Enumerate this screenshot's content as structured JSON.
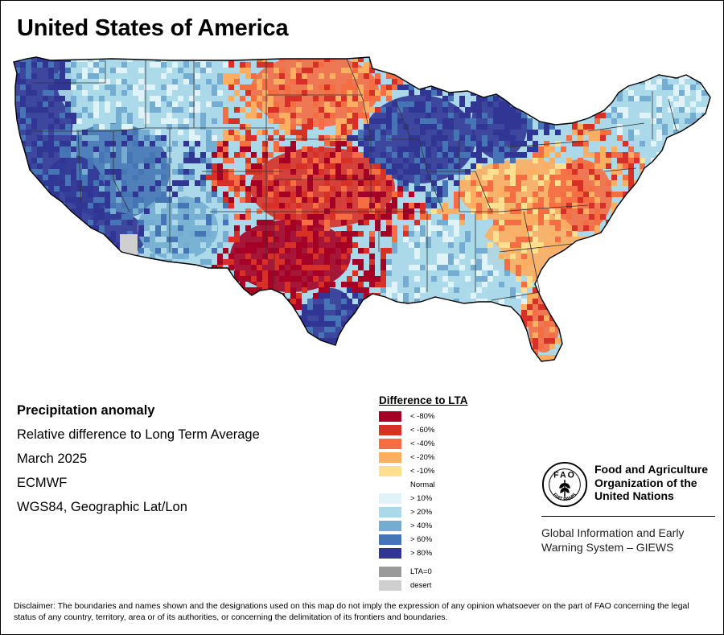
{
  "title": "United States of America",
  "info": {
    "heading": "Precipitation anomaly",
    "line1": "Relative difference to Long Term Average",
    "line2": "March 2025",
    "line3": "ECMWF",
    "line4": "WGS84, Geographic Lat/Lon"
  },
  "legend": {
    "title": "Difference to LTA",
    "classes": [
      {
        "label": "< -80%",
        "color": "#a50026"
      },
      {
        "label": "< -60%",
        "color": "#d73027"
      },
      {
        "label": "< -40%",
        "color": "#f46d43"
      },
      {
        "label": "< -20%",
        "color": "#fdae61"
      },
      {
        "label": "< -10%",
        "color": "#fee090"
      },
      {
        "label": "Normal",
        "color": "#ffffff"
      },
      {
        "label": "> 10%",
        "color": "#e0f3f8"
      },
      {
        "label": "> 20%",
        "color": "#abd9e9"
      },
      {
        "label": "> 40%",
        "color": "#74add1"
      },
      {
        "label": "> 60%",
        "color": "#4575b4"
      },
      {
        "label": "> 80%",
        "color": "#313695"
      }
    ],
    "extra": [
      {
        "label": "LTA=0",
        "color": "#9a9a9a"
      },
      {
        "label": "desert",
        "color": "#cfcfcf"
      }
    ]
  },
  "fao": {
    "name_line1": "Food and Agriculture",
    "name_line2": "Organization of the",
    "name_line3": "United Nations",
    "logo_letters": "FAO",
    "logo_motto": "FIAT PANIS",
    "giews_line1": "Global Information and Early",
    "giews_line2": "Warning System – GIEWS"
  },
  "disclaimer": "Disclaimer: The boundaries and names shown and the designations used on this map do not imply the expression of any opinion whatsoever on the part of FAO concerning the legal status of any country, territory, area or of its authorities, or concerning the delimitation of its frontiers and boundaries.",
  "map_regions": [
    {
      "name": "pacific-northwest-coast",
      "cls": 10
    },
    {
      "name": "northern-rockies",
      "cls": 7
    },
    {
      "name": "great-basin",
      "cls": 9
    },
    {
      "name": "central-california-valley",
      "cls": 10
    },
    {
      "name": "southern-california",
      "cls": 10
    },
    {
      "name": "southwest-desert",
      "cls": 8
    },
    {
      "name": "northern-plains",
      "cls": 2
    },
    {
      "name": "upper-midwest",
      "cls": 10
    },
    {
      "name": "michigan",
      "cls": 10
    },
    {
      "name": "central-plains",
      "cls": 1
    },
    {
      "name": "southern-high-plains",
      "cls": 0
    },
    {
      "name": "south-texas-coast",
      "cls": 10
    },
    {
      "name": "ohio-valley",
      "cls": 3
    },
    {
      "name": "mid-atlantic",
      "cls": 2
    },
    {
      "name": "southeast",
      "cls": 3
    },
    {
      "name": "deep-south",
      "cls": 7
    },
    {
      "name": "florida-peninsula",
      "cls": 2
    },
    {
      "name": "new-england",
      "cls": 7
    }
  ]
}
